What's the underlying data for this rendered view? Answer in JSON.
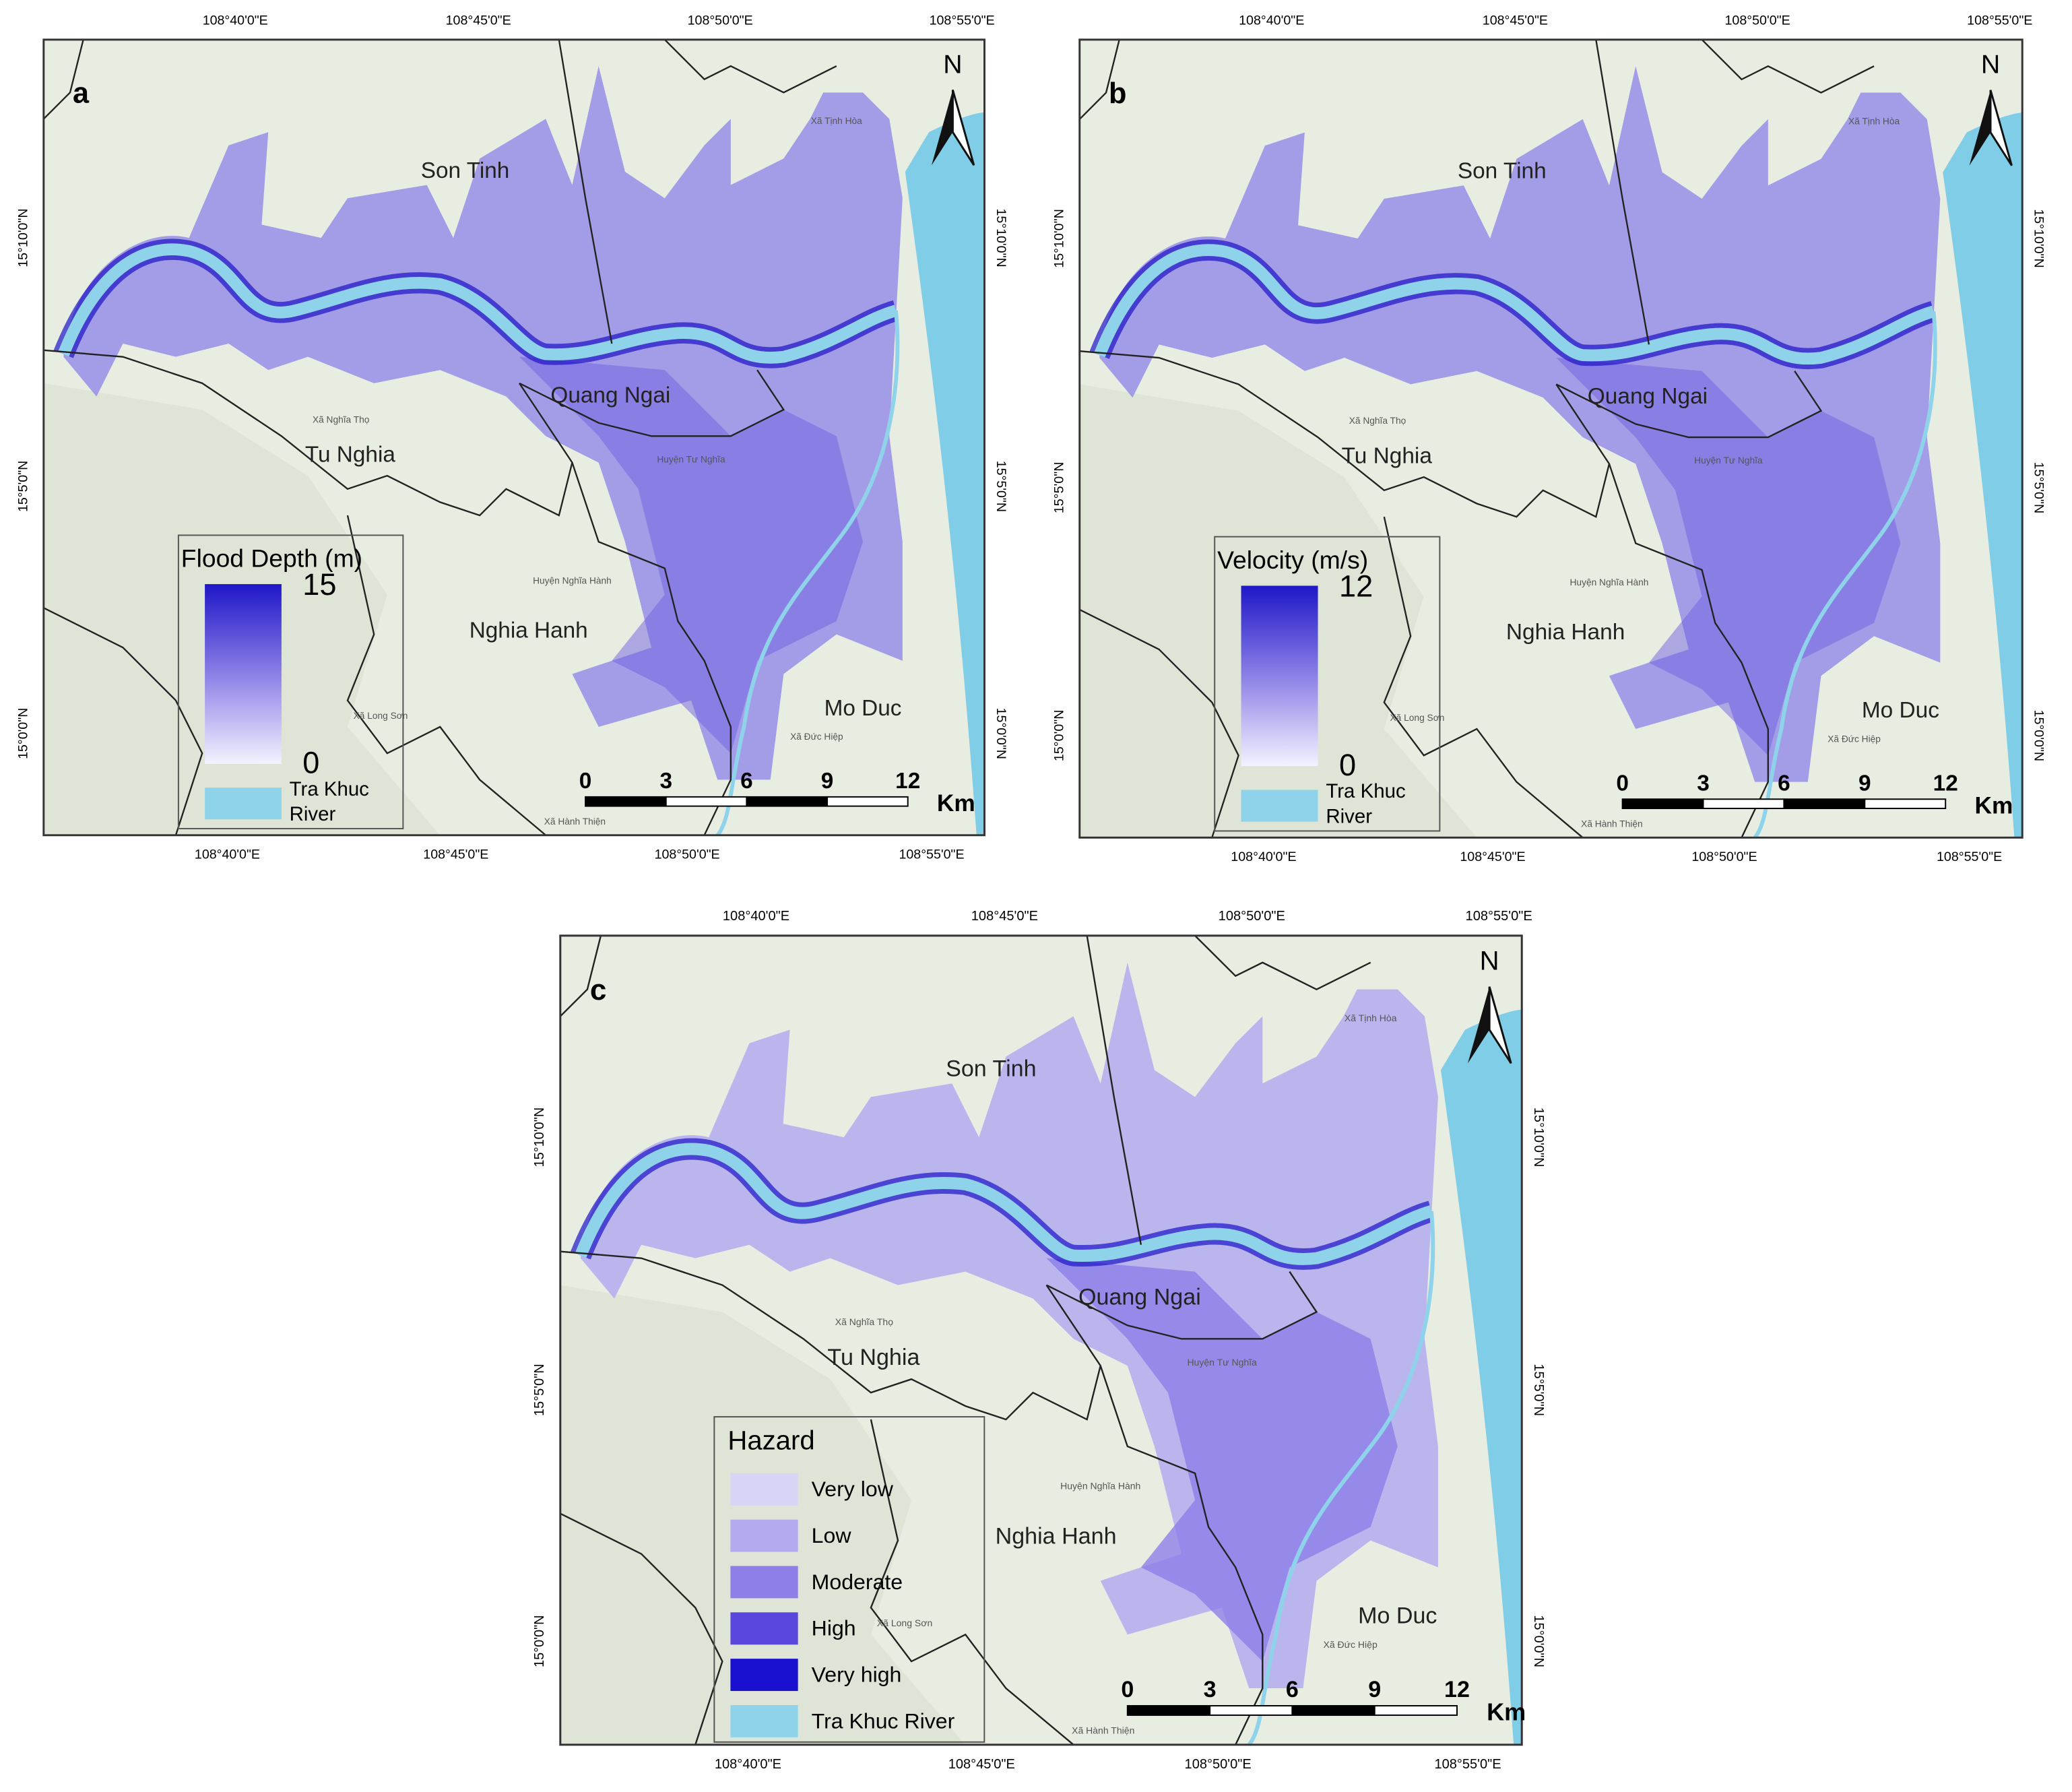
{
  "panels": [
    {
      "label": "a",
      "legend": {
        "title": "Flood Depth (m)",
        "max": 15,
        "min": 0,
        "river": [
          "Tra Khuc",
          "River"
        ]
      }
    },
    {
      "label": "b",
      "legend": {
        "title": "Velocity (m/s)",
        "max": 12,
        "min": 0,
        "river": [
          "Tra Khuc",
          "River"
        ]
      }
    },
    {
      "label": "c",
      "legend": {
        "title": "Hazard",
        "classes": [
          "Very low",
          "Low",
          "Moderate",
          "High",
          "Very high",
          "Tra Khuc River"
        ]
      }
    }
  ],
  "longitude_ticks": [
    "108°40'0\"E",
    "108°45'0\"E",
    "108°50'0\"E",
    "108°55'0\"E"
  ],
  "latitude_ticks": [
    "15°10'0\"N",
    "15°5'0\"N",
    "15°0'0\"N"
  ],
  "districts": [
    "Son Tinh",
    "Quang Ngai",
    "Tu Nghia",
    "Nghia Hanh",
    "Mo Duc"
  ],
  "small_labels": [
    "Xã Nghĩa Thọ",
    "Xã Long Sơn",
    "Xã Đức Hiệp",
    "Xã Hành Thiện",
    "Huyện Nghĩa Hành",
    "Xã Tịnh Hòa",
    "Huyện Tư Nghĩa"
  ],
  "scale_bar": {
    "ticks": [
      0,
      3,
      6,
      9,
      12
    ],
    "unit": "Km"
  },
  "north": "N"
}
